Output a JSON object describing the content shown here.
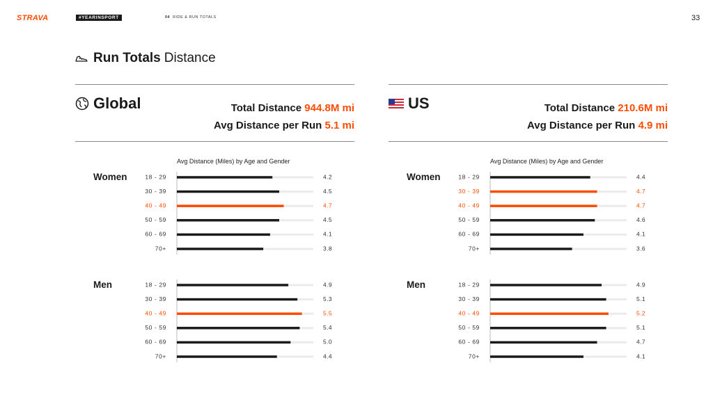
{
  "header": {
    "brand": "STRAVA",
    "tag": "#YEARINSPORT",
    "section_number": "04",
    "section_title": "RIDE & RUN TOTALS",
    "page_number": "33"
  },
  "title": {
    "main": "Run Totals",
    "sub": "Distance",
    "icon": "running-shoe-icon"
  },
  "colors": {
    "accent": "#fc4c02",
    "bar": "#1a1a1a",
    "track": "#ebebeb"
  },
  "panels": [
    {
      "region": "Global",
      "icon": "globe-icon",
      "total_label": "Total Distance",
      "total_value": "944.8M mi",
      "avg_label": "Avg Distance per Run",
      "avg_value": "5.1 mi"
    },
    {
      "region": "US",
      "icon": "us-flag-icon",
      "total_label": "Total Distance",
      "total_value": "210.6M mi",
      "avg_label": "Avg Distance per Run",
      "avg_value": "4.9 mi"
    }
  ],
  "chart_data": [
    {
      "type": "bar",
      "title": "Avg Distance (Miles) by Age and Gender",
      "region": "Global",
      "categories": [
        "18 - 29",
        "30 - 39",
        "40 - 49",
        "50 - 59",
        "60 - 69",
        "70+"
      ],
      "series": [
        {
          "name": "Women",
          "values": [
            4.2,
            4.5,
            4.7,
            4.5,
            4.1,
            3.8
          ],
          "highlight": [
            false,
            false,
            true,
            false,
            false,
            false
          ]
        },
        {
          "name": "Men",
          "values": [
            4.9,
            5.3,
            5.5,
            5.4,
            5.0,
            4.4
          ],
          "highlight": [
            false,
            false,
            true,
            false,
            false,
            false
          ]
        }
      ],
      "xlim": [
        0,
        6
      ]
    },
    {
      "type": "bar",
      "title": "Avg Distance (Miles) by Age and Gender",
      "region": "US",
      "categories": [
        "18 - 29",
        "30 - 39",
        "40 - 49",
        "50 - 59",
        "60 - 69",
        "70+"
      ],
      "series": [
        {
          "name": "Women",
          "values": [
            4.4,
            4.7,
            4.7,
            4.6,
            4.1,
            3.6
          ],
          "highlight": [
            false,
            true,
            true,
            false,
            false,
            false
          ]
        },
        {
          "name": "Men",
          "values": [
            4.9,
            5.1,
            5.2,
            5.1,
            4.7,
            4.1
          ],
          "highlight": [
            false,
            false,
            true,
            false,
            false,
            false
          ]
        }
      ],
      "xlim": [
        0,
        6
      ]
    }
  ]
}
